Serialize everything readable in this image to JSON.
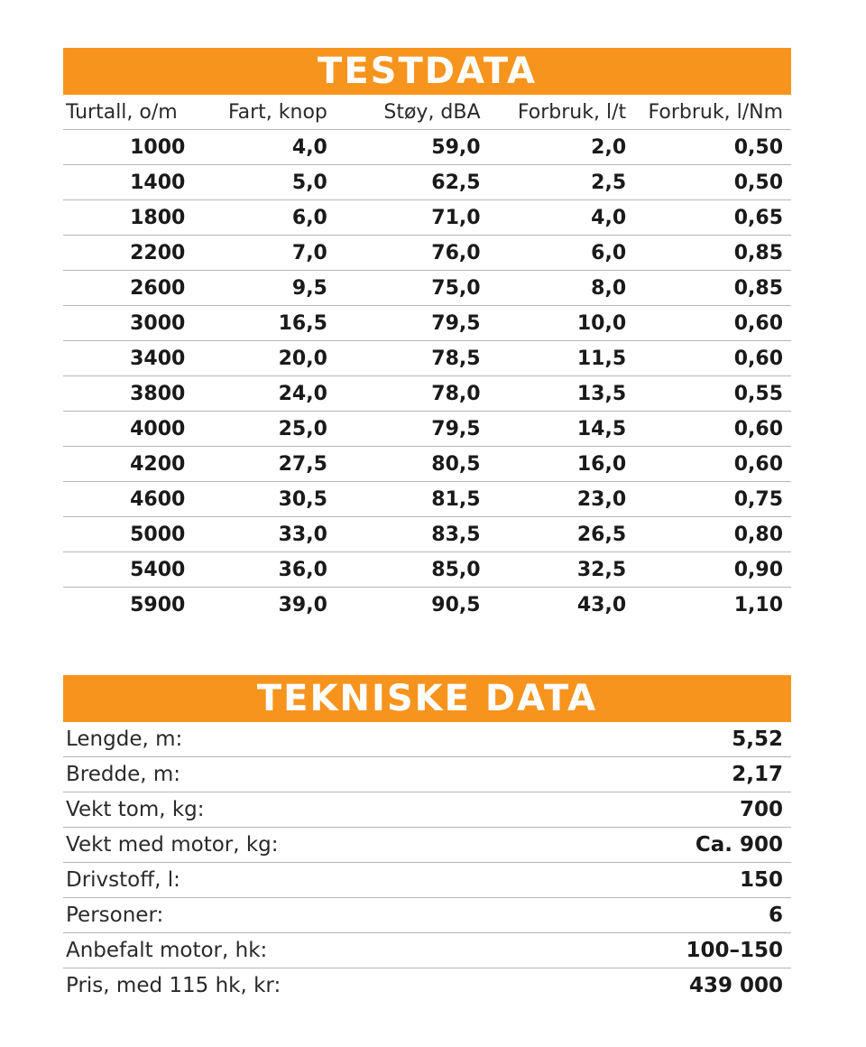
{
  "testdata": {
    "title": "TESTDATA",
    "columns": [
      "Turtall, o/m",
      "Fart, knop",
      "Støy, dBA",
      "Forbruk, l/t",
      "Forbruk, l/Nm"
    ],
    "rows": [
      [
        "1000",
        "4,0",
        "59,0",
        "2,0",
        "0,50"
      ],
      [
        "1400",
        "5,0",
        "62,5",
        "2,5",
        "0,50"
      ],
      [
        "1800",
        "6,0",
        "71,0",
        "4,0",
        "0,65"
      ],
      [
        "2200",
        "7,0",
        "76,0",
        "6,0",
        "0,85"
      ],
      [
        "2600",
        "9,5",
        "75,0",
        "8,0",
        "0,85"
      ],
      [
        "3000",
        "16,5",
        "79,5",
        "10,0",
        "0,60"
      ],
      [
        "3400",
        "20,0",
        "78,5",
        "11,5",
        "0,60"
      ],
      [
        "3800",
        "24,0",
        "78,0",
        "13,5",
        "0,55"
      ],
      [
        "4000",
        "25,0",
        "79,5",
        "14,5",
        "0,60"
      ],
      [
        "4200",
        "27,5",
        "80,5",
        "16,0",
        "0,60"
      ],
      [
        "4600",
        "30,5",
        "81,5",
        "23,0",
        "0,75"
      ],
      [
        "5000",
        "33,0",
        "83,5",
        "26,5",
        "0,80"
      ],
      [
        "5400",
        "36,0",
        "85,0",
        "32,5",
        "0,90"
      ],
      [
        "5900",
        "39,0",
        "90,5",
        "43,0",
        "1,10"
      ]
    ]
  },
  "tekniske": {
    "title": "TEKNISKE DATA",
    "rows": [
      {
        "label": "Lengde, m:",
        "value": "5,52"
      },
      {
        "label": "Bredde, m:",
        "value": "2,17"
      },
      {
        "label": "Vekt tom, kg:",
        "value": "700"
      },
      {
        "label": "Vekt med motor, kg:",
        "value": "Ca. 900"
      },
      {
        "label": "Drivstoff, l:",
        "value": "150"
      },
      {
        "label": "Personer:",
        "value": "6"
      },
      {
        "label": "Anbefalt motor, hk:",
        "value": "100–150"
      },
      {
        "label": "Pris, med 115 hk, kr:",
        "value": "439 000"
      }
    ]
  },
  "colors": {
    "banner_bg": "#f7941d",
    "banner_text": "#ffffff",
    "rule": "#b5b5b5"
  }
}
